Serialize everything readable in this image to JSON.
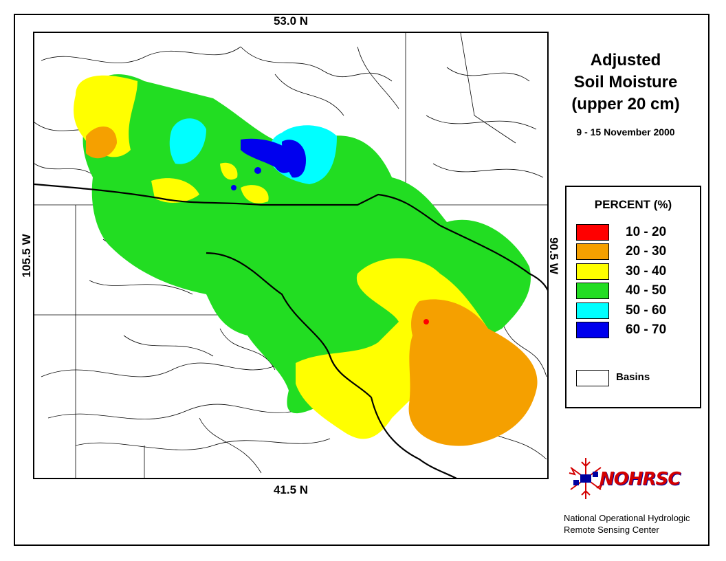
{
  "labels": {
    "top_lat": "53.0 N",
    "bottom_lat": "41.5 N",
    "left_lon": "105.5 W",
    "right_lon": "90.5 W"
  },
  "title": {
    "line1": "Adjusted",
    "line2": "Soil Moisture",
    "line3": "(upper 20 cm)",
    "dates": "9 - 15 November 2000"
  },
  "legend": {
    "title": "PERCENT (%)",
    "items": [
      {
        "label": "10 - 20",
        "color": "#ff0000"
      },
      {
        "label": "20 - 30",
        "color": "#f5a000"
      },
      {
        "label": "30 - 40",
        "color": "#ffff00"
      },
      {
        "label": "40 - 50",
        "color": "#22dd22"
      },
      {
        "label": "50 - 60",
        "color": "#00ffff"
      },
      {
        "label": "60 - 70",
        "color": "#0000ee"
      }
    ],
    "basins_label": "Basins"
  },
  "logo": {
    "text": "NOHRSC",
    "icon": "snowflake-logo-icon"
  },
  "credit": {
    "line1": "National Operational Hydrologic",
    "line2": "Remote Sensing Center"
  }
}
